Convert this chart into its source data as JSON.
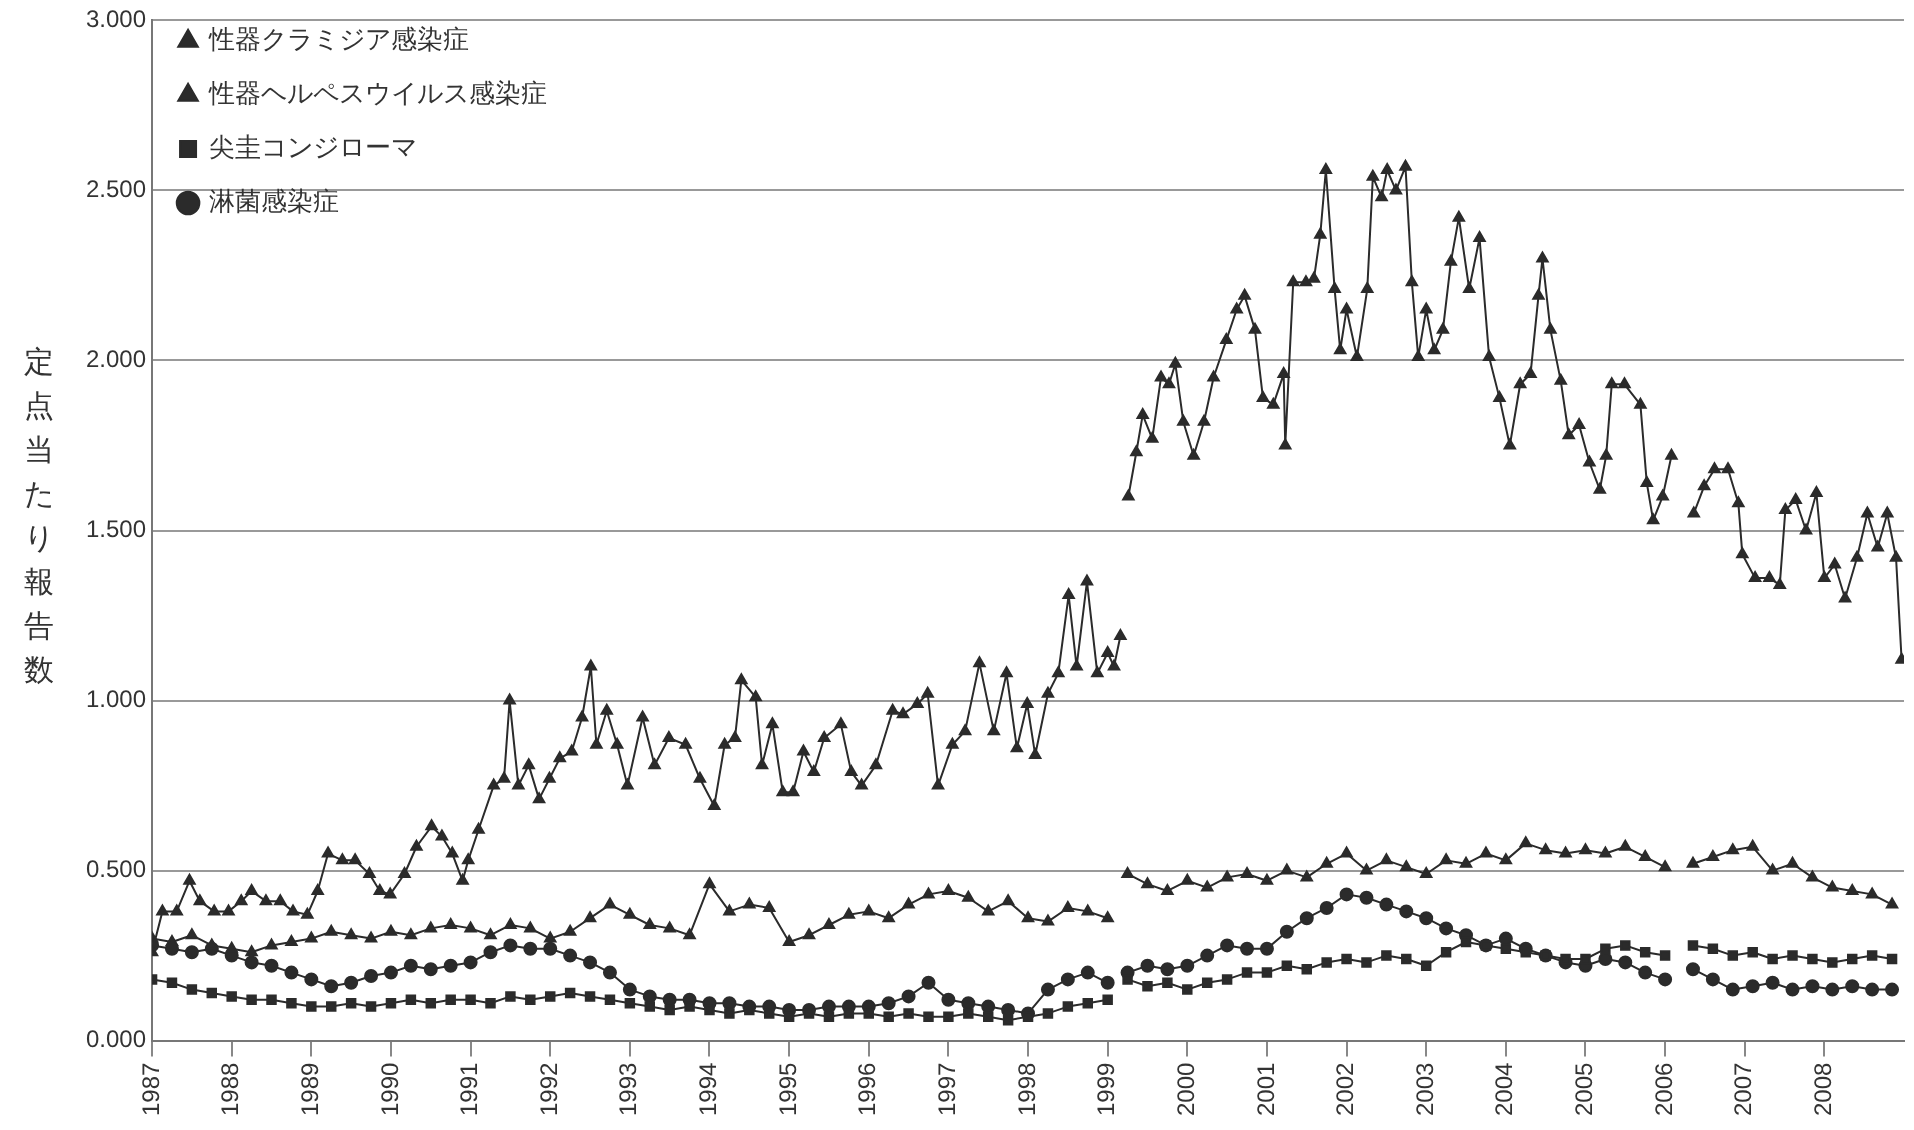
{
  "chart_data": {
    "type": "line",
    "ylabel": "定点当たり報告数",
    "x": [
      1987,
      1987.25,
      1987.5,
      1987.75,
      1988,
      1988.25,
      1988.5,
      1988.75,
      1989,
      1989.25,
      1989.5,
      1989.75,
      1990,
      1990.25,
      1990.5,
      1990.75,
      1991,
      1991.25,
      1991.5,
      1991.75,
      1992,
      1992.25,
      1992.5,
      1992.75,
      1993,
      1993.25,
      1993.5,
      1993.75,
      1994,
      1994.25,
      1994.5,
      1994.75,
      1995,
      1995.25,
      1995.5,
      1995.75,
      1996,
      1996.25,
      1996.5,
      1996.75,
      1997,
      1997.25,
      1997.5,
      1997.75,
      1998,
      1998.25,
      1998.5,
      1998.75,
      1999,
      1999.2,
      1999.25,
      1999.5,
      1999.75,
      2000,
      2000.25,
      2000.5,
      2000.75,
      2001,
      2001.25,
      2001.5,
      2001.75,
      2002,
      2002.25,
      2002.5,
      2002.75,
      2003,
      2003.25,
      2003.5,
      2003.75,
      2004,
      2004.25,
      2004.5,
      2004.75,
      2005,
      2005.25,
      2005.5,
      2005.75,
      2006,
      2006.2,
      2006.35,
      2006.6,
      2006.85,
      2007.1,
      2007.35,
      2007.6,
      2007.85,
      2008.1,
      2008.35,
      2008.6,
      2008.85
    ],
    "series": [
      {
        "name": "性器クラミジア感染症",
        "color": "#2b2b2b",
        "marker": "triangle",
        "x": [
          1987,
          1987.13,
          1987.31,
          1987.47,
          1987.6,
          1987.78,
          1987.96,
          1988.12,
          1988.25,
          1988.43,
          1988.61,
          1988.77,
          1988.95,
          1989.08,
          1989.21,
          1989.39,
          1989.55,
          1989.73,
          1989.86,
          1989.99,
          1990.17,
          1990.32,
          1990.51,
          1990.64,
          1990.77,
          1990.9,
          1990.97,
          1991.1,
          1991.29,
          1991.42,
          1991.49,
          1991.6,
          1991.73,
          1991.86,
          1991.99,
          1992.12,
          1992.27,
          1992.4,
          1992.51,
          1992.58,
          1992.71,
          1992.84,
          1992.97,
          1993.16,
          1993.31,
          1993.49,
          1993.7,
          1993.88,
          1994.06,
          1994.19,
          1994.32,
          1994.4,
          1994.58,
          1994.66,
          1994.79,
          1994.92,
          1995.05,
          1995.18,
          1995.31,
          1995.44,
          1995.65,
          1995.78,
          1995.91,
          1996.09,
          1996.3,
          1996.43,
          1996.61,
          1996.74,
          1996.87,
          1997.05,
          1997.21,
          1997.39,
          1997.57,
          1997.73,
          1997.86,
          1997.99,
          1998.09,
          1998.25,
          1998.38,
          1998.51,
          1998.61,
          1998.74,
          1998.87,
          1999,
          1999.08,
          1999.16,
          1999.21,
          1999.26,
          1999.36,
          1999.44,
          1999.56,
          1999.67,
          1999.77,
          1999.85,
          1999.95,
          2000.08,
          2000.21,
          2000.33,
          2000.49,
          2000.62,
          2000.72,
          2000.85,
          2000.95,
          2001.08,
          2001.21,
          2001.23,
          2001.33,
          2001.49,
          2001.59,
          2001.67,
          2001.74,
          2001.85,
          2001.92,
          2002,
          2002.13,
          2002.26,
          2002.33,
          2002.44,
          2002.51,
          2002.62,
          2002.74,
          2002.82,
          2002.9,
          2003,
          2003.1,
          2003.21,
          2003.31,
          2003.41,
          2003.54,
          2003.67,
          2003.79,
          2003.92,
          2004.05,
          2004.18,
          2004.31,
          2004.41,
          2004.46,
          2004.56,
          2004.69,
          2004.79,
          2004.92,
          2005.05,
          2005.18,
          2005.26,
          2005.33,
          2005.49,
          2005.69,
          2005.77,
          2005.85,
          2005.97,
          2006.08,
          2006.2,
          2006.36,
          2006.49,
          2006.62,
          2006.79,
          2006.92,
          2006.97,
          2007.13,
          2007.31,
          2007.44,
          2007.51,
          2007.64,
          2007.77,
          2007.9,
          2008,
          2008.13,
          2008.26,
          2008.41,
          2008.54,
          2008.67,
          2008.79,
          2008.9,
          2008.97
        ],
        "values": [
          0.26,
          0.38,
          0.38,
          0.47,
          0.41,
          0.38,
          0.38,
          0.41,
          0.44,
          0.41,
          0.41,
          0.38,
          0.37,
          0.44,
          0.55,
          0.53,
          0.53,
          0.49,
          0.44,
          0.43,
          0.49,
          0.57,
          0.63,
          0.6,
          0.55,
          0.47,
          0.53,
          0.62,
          0.75,
          0.77,
          1.0,
          0.75,
          0.81,
          0.71,
          0.77,
          0.83,
          0.85,
          0.95,
          1.1,
          0.87,
          0.97,
          0.87,
          0.75,
          0.95,
          0.81,
          0.89,
          0.87,
          0.77,
          0.69,
          0.87,
          0.89,
          1.06,
          1.01,
          0.81,
          0.93,
          0.73,
          0.73,
          0.85,
          0.79,
          0.89,
          0.93,
          0.79,
          0.75,
          0.81,
          0.97,
          0.96,
          0.99,
          1.02,
          0.75,
          0.87,
          0.91,
          1.11,
          0.91,
          1.08,
          0.86,
          0.99,
          0.84,
          1.02,
          1.08,
          1.31,
          1.1,
          1.35,
          1.08,
          1.14,
          1.1,
          1.19,
          null,
          1.6,
          1.73,
          1.84,
          1.77,
          1.95,
          1.93,
          1.99,
          1.82,
          1.72,
          1.82,
          1.95,
          2.06,
          2.15,
          2.19,
          2.09,
          1.89,
          1.87,
          1.96,
          1.75,
          2.23,
          2.23,
          2.24,
          2.37,
          2.56,
          2.21,
          2.03,
          2.15,
          2.01,
          2.21,
          2.54,
          2.48,
          2.56,
          2.5,
          2.57,
          2.23,
          2.01,
          2.15,
          2.03,
          2.09,
          2.29,
          2.42,
          2.21,
          2.36,
          2.01,
          1.89,
          1.75,
          1.93,
          1.96,
          2.19,
          2.3,
          2.09,
          1.94,
          1.78,
          1.81,
          1.7,
          1.62,
          1.72,
          1.93,
          1.93,
          1.87,
          1.64,
          1.53,
          1.6,
          1.72,
          null,
          1.55,
          1.63,
          1.68,
          1.68,
          1.58,
          1.43,
          1.36,
          1.36,
          1.34,
          1.56,
          1.59,
          1.5,
          1.61,
          1.36,
          1.4,
          1.3,
          1.42,
          1.55,
          1.45,
          1.55,
          1.42,
          1.12
        ]
      },
      {
        "name": "性器ヘルペスウイルス感染症",
        "color": "#2b2b2b",
        "marker": "triangle",
        "values": [
          0.3,
          0.29,
          0.31,
          0.28,
          0.27,
          0.26,
          0.28,
          0.29,
          0.3,
          0.32,
          0.31,
          0.3,
          0.32,
          0.31,
          0.33,
          0.34,
          0.33,
          0.31,
          0.34,
          0.33,
          0.3,
          0.32,
          0.36,
          0.4,
          0.37,
          0.34,
          0.33,
          0.31,
          0.46,
          0.38,
          0.4,
          0.39,
          0.29,
          0.31,
          0.34,
          0.37,
          0.38,
          0.36,
          0.4,
          0.43,
          0.44,
          0.42,
          0.38,
          0.41,
          0.36,
          0.35,
          0.39,
          0.38,
          0.36,
          null,
          0.49,
          0.46,
          0.44,
          0.47,
          0.45,
          0.48,
          0.49,
          0.47,
          0.5,
          0.48,
          0.52,
          0.55,
          0.5,
          0.53,
          0.51,
          0.49,
          0.53,
          0.52,
          0.55,
          0.53,
          0.58,
          0.56,
          0.55,
          0.56,
          0.55,
          0.57,
          0.54,
          0.51,
          null,
          0.52,
          0.54,
          0.56,
          0.57,
          0.5,
          0.52,
          0.48,
          0.45,
          0.44,
          0.43,
          0.4
        ]
      },
      {
        "name": "尖圭コンジローマ",
        "color": "#2b2b2b",
        "marker": "square",
        "values": [
          0.18,
          0.17,
          0.15,
          0.14,
          0.13,
          0.12,
          0.12,
          0.11,
          0.1,
          0.1,
          0.11,
          0.1,
          0.11,
          0.12,
          0.11,
          0.12,
          0.12,
          0.11,
          0.13,
          0.12,
          0.13,
          0.14,
          0.13,
          0.12,
          0.11,
          0.1,
          0.09,
          0.1,
          0.09,
          0.08,
          0.09,
          0.08,
          0.07,
          0.08,
          0.07,
          0.08,
          0.08,
          0.07,
          0.08,
          0.07,
          0.07,
          0.08,
          0.07,
          0.06,
          0.07,
          0.08,
          0.1,
          0.11,
          0.12,
          null,
          0.18,
          0.16,
          0.17,
          0.15,
          0.17,
          0.18,
          0.2,
          0.2,
          0.22,
          0.21,
          0.23,
          0.24,
          0.23,
          0.25,
          0.24,
          0.22,
          0.26,
          0.29,
          0.28,
          0.27,
          0.26,
          0.25,
          0.24,
          0.24,
          0.27,
          0.28,
          0.26,
          0.25,
          null,
          0.28,
          0.27,
          0.25,
          0.26,
          0.24,
          0.25,
          0.24,
          0.23,
          0.24,
          0.25,
          0.24
        ]
      },
      {
        "name": "淋菌感染症",
        "color": "#2b2b2b",
        "marker": "circle",
        "values": [
          0.28,
          0.27,
          0.26,
          0.27,
          0.25,
          0.23,
          0.22,
          0.2,
          0.18,
          0.16,
          0.17,
          0.19,
          0.2,
          0.22,
          0.21,
          0.22,
          0.23,
          0.26,
          0.28,
          0.27,
          0.27,
          0.25,
          0.23,
          0.2,
          0.15,
          0.13,
          0.12,
          0.12,
          0.11,
          0.11,
          0.1,
          0.1,
          0.09,
          0.09,
          0.1,
          0.1,
          0.1,
          0.11,
          0.13,
          0.17,
          0.12,
          0.11,
          0.1,
          0.09,
          0.08,
          0.15,
          0.18,
          0.2,
          0.17,
          null,
          0.2,
          0.22,
          0.21,
          0.22,
          0.25,
          0.28,
          0.27,
          0.27,
          0.32,
          0.36,
          0.39,
          0.43,
          0.42,
          0.4,
          0.38,
          0.36,
          0.33,
          0.31,
          0.28,
          0.3,
          0.27,
          0.25,
          0.23,
          0.22,
          0.24,
          0.23,
          0.2,
          0.18,
          null,
          0.21,
          0.18,
          0.15,
          0.16,
          0.17,
          0.15,
          0.16,
          0.15,
          0.16,
          0.15,
          0.15
        ]
      }
    ],
    "xlim": [
      1987,
      2009
    ],
    "xticks": [
      1987,
      1988,
      1989,
      1990,
      1991,
      1992,
      1993,
      1994,
      1995,
      1996,
      1997,
      1998,
      1999,
      2000,
      2001,
      2002,
      2003,
      2004,
      2005,
      2006,
      2007,
      2008
    ],
    "ylim": [
      0,
      3
    ],
    "yticks": [
      {
        "value": 0,
        "label": "0.000"
      },
      {
        "value": 0.5,
        "label": "0.500"
      },
      {
        "value": 1,
        "label": "1.000"
      },
      {
        "value": 1.5,
        "label": "1.500"
      },
      {
        "value": 2,
        "label": "2.000"
      },
      {
        "value": 2.5,
        "label": "2.500"
      },
      {
        "value": 3,
        "label": "3.000"
      }
    ],
    "grid": "y",
    "legend": "top left",
    "line_style": "solid"
  }
}
